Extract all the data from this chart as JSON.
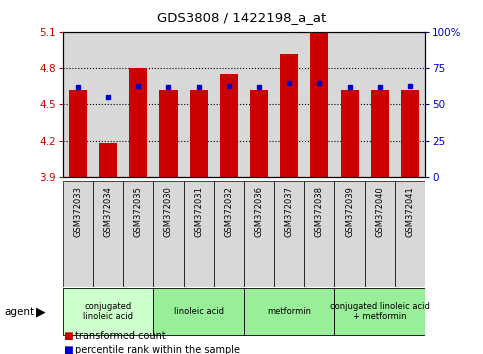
{
  "title": "GDS3808 / 1422198_a_at",
  "samples": [
    "GSM372033",
    "GSM372034",
    "GSM372035",
    "GSM372030",
    "GSM372031",
    "GSM372032",
    "GSM372036",
    "GSM372037",
    "GSM372038",
    "GSM372039",
    "GSM372040",
    "GSM372041"
  ],
  "transformed_count": [
    4.62,
    4.18,
    4.8,
    4.62,
    4.62,
    4.75,
    4.62,
    4.92,
    5.1,
    4.62,
    4.62,
    4.62
  ],
  "percentile_rank": [
    62,
    55,
    63,
    62,
    62,
    63,
    62,
    65,
    65,
    62,
    62,
    63
  ],
  "ylim_left": [
    3.9,
    5.1
  ],
  "ylim_right": [
    0,
    100
  ],
  "yticks_left": [
    3.9,
    4.2,
    4.5,
    4.8,
    5.1
  ],
  "yticks_right": [
    0,
    25,
    50,
    75,
    100
  ],
  "ytick_labels_right": [
    "0",
    "25",
    "50",
    "75",
    "100%"
  ],
  "bar_color": "#cc0000",
  "dot_color": "#0000cc",
  "bar_bottom": 3.9,
  "bar_width": 0.6,
  "agent_groups": [
    {
      "label": "conjugated\nlinoleic acid",
      "start": 0,
      "end": 3,
      "color": "#ccffcc"
    },
    {
      "label": "linoleic acid",
      "start": 3,
      "end": 6,
      "color": "#99ee99"
    },
    {
      "label": "metformin",
      "start": 6,
      "end": 9,
      "color": "#99ee99"
    },
    {
      "label": "conjugated linoleic acid\n+ metformin",
      "start": 9,
      "end": 12,
      "color": "#99ee99"
    }
  ]
}
